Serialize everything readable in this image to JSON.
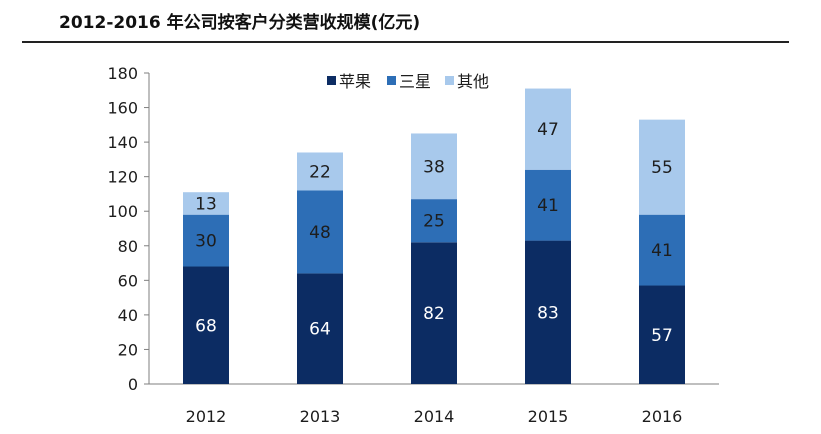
{
  "chart_data": {
    "type": "bar",
    "stacked": true,
    "title": "2012-2016 年公司按客户分类营收规模(亿元)",
    "categories": [
      "2012",
      "2013",
      "2014",
      "2015",
      "2016"
    ],
    "series": [
      {
        "name": "苹果",
        "values": [
          68,
          64,
          82,
          83,
          57
        ],
        "color": "#0c2c63",
        "label_color": "#ffffff"
      },
      {
        "name": "三星",
        "values": [
          30,
          48,
          25,
          41,
          41
        ],
        "color": "#2d6eb6",
        "label_color": "#1d1d1d"
      },
      {
        "name": "其他",
        "values": [
          13,
          22,
          38,
          47,
          55
        ],
        "color": "#a8c9ec",
        "label_color": "#1d1d1d"
      }
    ],
    "ylim": [
      0,
      180
    ],
    "yticks": [
      0,
      20,
      40,
      60,
      80,
      100,
      120,
      140,
      160,
      180
    ],
    "legend_position": "top-center",
    "grid": false
  }
}
